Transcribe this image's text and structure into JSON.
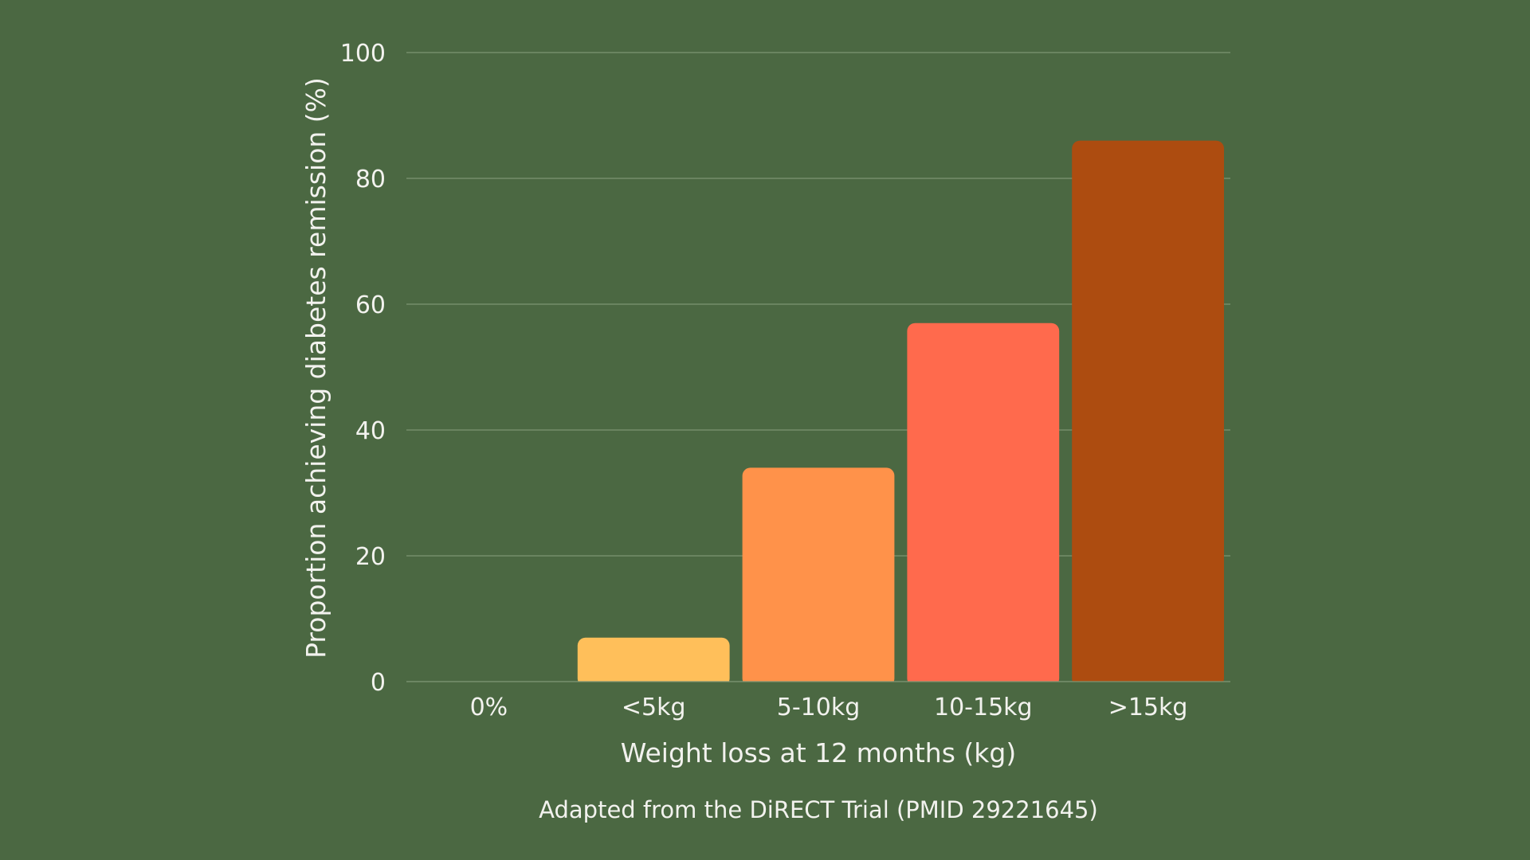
{
  "chart_data": {
    "type": "bar",
    "categories": [
      "0%",
      "<5kg",
      "5-10kg",
      "10-15kg",
      ">15kg"
    ],
    "values": [
      0,
      7,
      34,
      57,
      86
    ],
    "bar_colors": [
      "#ffbf5a",
      "#ffbf5a",
      "#ff924a",
      "#ff6a4d",
      "#ad4c10"
    ],
    "xlabel": "Weight loss at 12 months (kg)",
    "ylabel": "Proportion achieving diabetes remission (%)",
    "ylim": [
      0,
      100
    ],
    "yticks": [
      "0",
      "20",
      "40",
      "60",
      "80",
      "100"
    ],
    "grid": true,
    "legend": "none"
  },
  "caption": "Adapted from the DiRECT Trial (PMID 29221645)",
  "colors": {
    "background": "#4b6842",
    "text": "#f2f2ee",
    "grid": "#7d9473"
  }
}
